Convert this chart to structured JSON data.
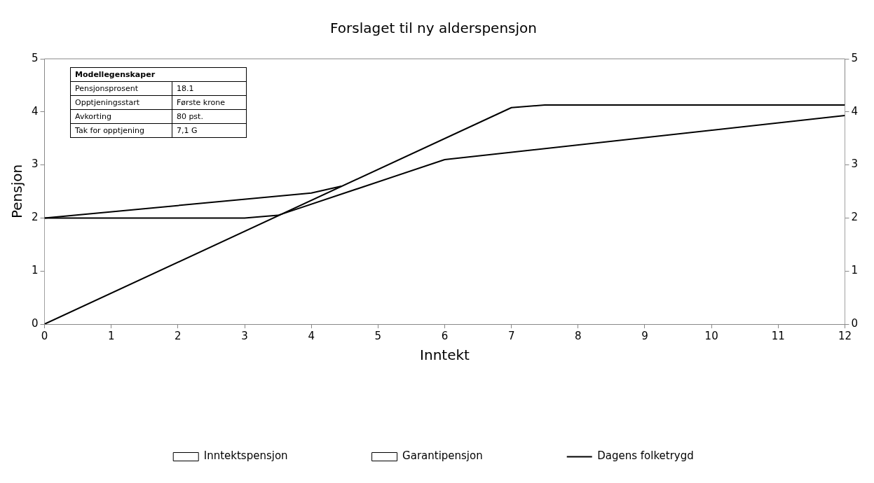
{
  "chart_data": {
    "type": "line",
    "title": "Forslaget til ny alderspensjon",
    "xlabel": "Inntekt",
    "ylabel": "Pensjon",
    "xlim": [
      0,
      12
    ],
    "xticks": [
      0,
      1,
      2,
      3,
      4,
      5,
      6,
      7,
      8,
      9,
      10,
      11,
      12
    ],
    "ylim": [
      0,
      5
    ],
    "yticks": [
      0,
      1,
      2,
      3,
      4,
      5
    ],
    "y2lim": [
      0,
      5
    ],
    "y2ticks": [
      0,
      1,
      2,
      3,
      4,
      5
    ],
    "series": [
      {
        "name": "Inntektspensjon",
        "type": "area",
        "color": "#ffffff",
        "x": [
          0,
          7,
          7.5,
          12
        ],
        "values": [
          0,
          4.08,
          4.13,
          4.13
        ]
      },
      {
        "name": "Garantipensjon",
        "type": "area",
        "color": "#ffffff",
        "x": [
          0,
          4,
          4.45
        ],
        "values": [
          2,
          2.47,
          2.6
        ]
      },
      {
        "name": "Dagens folketrygd",
        "color": "#000000",
        "x": [
          0,
          3,
          3.5,
          6,
          12
        ],
        "values": [
          2,
          2,
          2.05,
          3.1,
          3.93
        ]
      }
    ],
    "annotations": [
      "Modellegenskaper",
      "Pensjonsprosent",
      "18.1",
      "Opptjeningsstart",
      "Første krone",
      "Avkorting",
      "80 pst.",
      "Tak for opptjening",
      "7,1 G"
    ],
    "legend": "bottom",
    "grid": false,
    "marker": "none",
    "line_style": "solid"
  }
}
